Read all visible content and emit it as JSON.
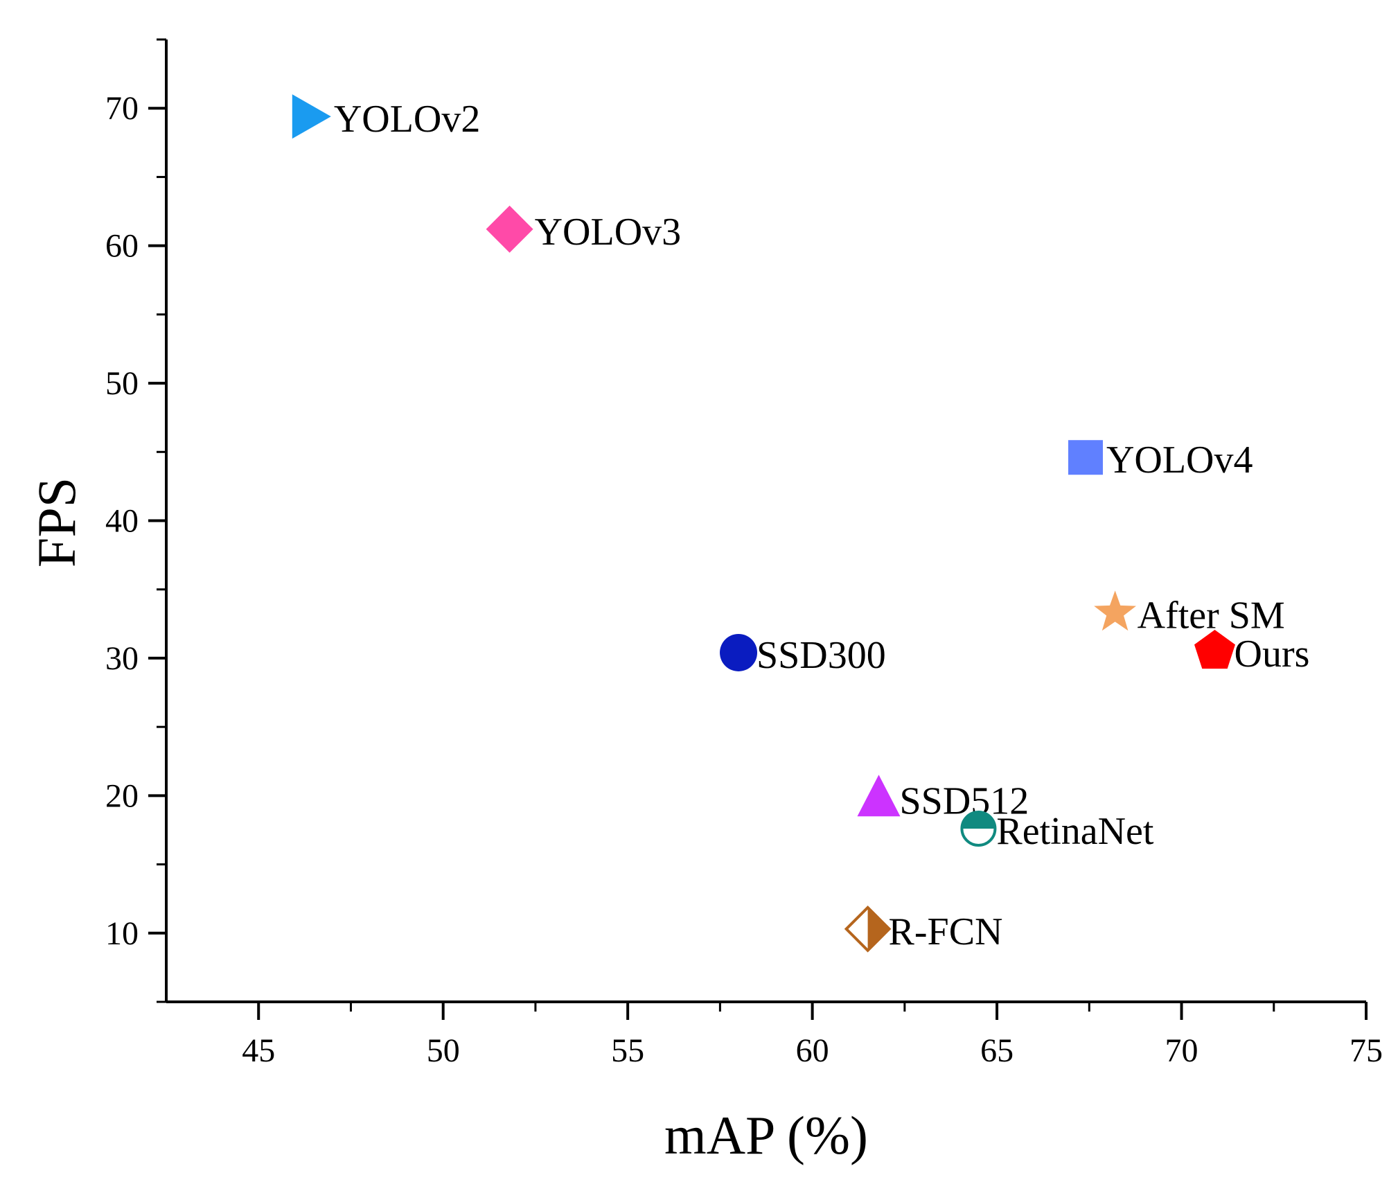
{
  "chart_data": {
    "type": "scatter",
    "xlabel": "mAP (%)",
    "ylabel": "FPS",
    "xlim": [
      42.5,
      75
    ],
    "ylim": [
      5,
      75
    ],
    "xticks": [
      45,
      50,
      55,
      60,
      65,
      70,
      75
    ],
    "yticks": [
      10,
      20,
      30,
      40,
      50,
      60,
      70
    ],
    "grid": false,
    "points": [
      {
        "label": "YOLOv2",
        "x": 46.4,
        "y": 69.4,
        "marker": "triangle-right",
        "color": "#1a9bf0"
      },
      {
        "label": "YOLOv3",
        "x": 51.8,
        "y": 61.2,
        "marker": "diamond",
        "color": "#ff4aa8"
      },
      {
        "label": "YOLOv4",
        "x": 67.4,
        "y": 44.6,
        "marker": "square",
        "color": "#6080ff"
      },
      {
        "label": "After SM",
        "x": 68.2,
        "y": 33.3,
        "marker": "star",
        "color": "#f4a460"
      },
      {
        "label": "Ours",
        "x": 70.9,
        "y": 30.5,
        "marker": "pentagon",
        "color": "#ff0000"
      },
      {
        "label": "SSD300",
        "x": 58.0,
        "y": 30.4,
        "marker": "circle",
        "color": "#0a1cc0"
      },
      {
        "label": "SSD512",
        "x": 61.8,
        "y": 19.8,
        "marker": "triangle-up",
        "color": "#cc33ff"
      },
      {
        "label": "RetinaNet",
        "x": 64.5,
        "y": 17.6,
        "marker": "circle-half",
        "color": "#108a80"
      },
      {
        "label": "R-FCN",
        "x": 61.5,
        "y": 10.3,
        "marker": "diamond-half",
        "color": "#b5651d"
      }
    ]
  }
}
